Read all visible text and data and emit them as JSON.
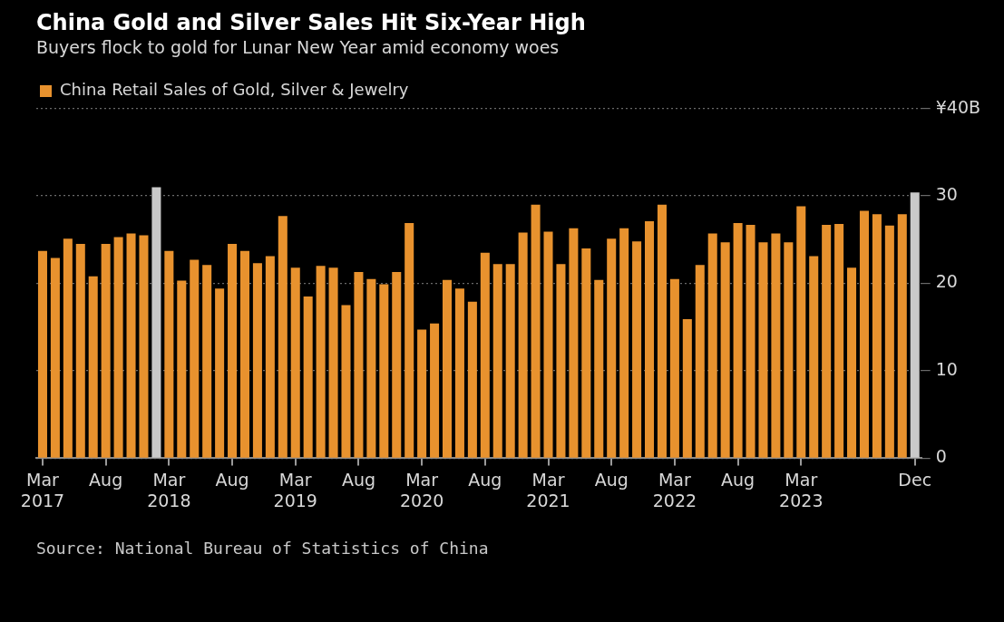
{
  "chart_data": {
    "type": "bar",
    "title": "China Gold and Silver Sales Hit Six-Year High",
    "subtitle": "Buyers flock to gold for Lunar New Year amid economy woes",
    "categories": [
      "Mar 2017",
      null,
      null,
      null,
      null,
      "Aug",
      null,
      null,
      null,
      null,
      "Mar 2018",
      null,
      null,
      null,
      null,
      "Aug",
      null,
      null,
      null,
      null,
      "Mar 2019",
      null,
      null,
      null,
      null,
      "Aug",
      null,
      null,
      null,
      null,
      "Mar 2020",
      null,
      null,
      null,
      null,
      "Aug",
      null,
      null,
      null,
      null,
      "Mar 2021",
      null,
      null,
      null,
      null,
      "Aug",
      null,
      null,
      null,
      null,
      "Mar 2022",
      null,
      null,
      null,
      null,
      "Aug",
      null,
      null,
      null,
      null,
      "Mar 2023",
      null,
      null,
      null,
      null,
      null,
      null,
      null,
      null,
      "Dec"
    ],
    "series": [
      {
        "name": "China Retail Sales of Gold, Silver & Jewelry",
        "color": "#e8922e",
        "colors": [
          "#e8922e",
          "#e8922e",
          "#e8922e",
          "#e8922e",
          "#e8922e",
          "#e8922e",
          "#e8922e",
          "#e8922e",
          "#e8922e",
          "#c9c9c9",
          "#e8922e",
          "#e8922e",
          "#e8922e",
          "#e8922e",
          "#e8922e",
          "#e8922e",
          "#e8922e",
          "#e8922e",
          "#e8922e",
          "#e8922e",
          "#e8922e",
          "#e8922e",
          "#e8922e",
          "#e8922e",
          "#e8922e",
          "#e8922e",
          "#e8922e",
          "#e8922e",
          "#e8922e",
          "#e8922e",
          "#e8922e",
          "#e8922e",
          "#e8922e",
          "#e8922e",
          "#e8922e",
          "#e8922e",
          "#e8922e",
          "#e8922e",
          "#e8922e",
          "#e8922e",
          "#e8922e",
          "#e8922e",
          "#e8922e",
          "#e8922e",
          "#e8922e",
          "#e8922e",
          "#e8922e",
          "#e8922e",
          "#e8922e",
          "#e8922e",
          "#e8922e",
          "#e8922e",
          "#e8922e",
          "#e8922e",
          "#e8922e",
          "#e8922e",
          "#e8922e",
          "#e8922e",
          "#e8922e",
          "#e8922e",
          "#e8922e",
          "#e8922e",
          "#e8922e",
          "#e8922e",
          "#e8922e",
          "#e8922e",
          "#e8922e",
          "#e8922e",
          "#e8922e",
          "#c9c9c9"
        ],
        "values": [
          23.7,
          22.9,
          25.1,
          24.5,
          20.8,
          24.5,
          25.3,
          25.7,
          25.5,
          31.0,
          23.7,
          20.3,
          22.7,
          22.1,
          19.4,
          24.5,
          23.7,
          22.3,
          23.1,
          27.7,
          21.8,
          18.5,
          22.0,
          21.8,
          17.5,
          21.3,
          20.5,
          19.9,
          21.3,
          26.9,
          14.7,
          15.4,
          20.4,
          19.4,
          17.9,
          23.5,
          22.2,
          22.2,
          25.8,
          29.0,
          25.9,
          22.2,
          26.3,
          24.0,
          20.4,
          25.1,
          26.3,
          24.8,
          27.1,
          29.0,
          20.5,
          15.9,
          22.1,
          25.7,
          24.7,
          26.9,
          26.7,
          24.7,
          25.7,
          24.7,
          28.8,
          23.1,
          26.7,
          26.8,
          21.8,
          28.3,
          27.9,
          26.6,
          27.9,
          30.4
        ]
      }
    ],
    "ylim": [
      0,
      40
    ],
    "yticks": [
      0,
      10,
      20,
      30,
      {
        "value": 40,
        "label": "¥40B"
      }
    ],
    "grid": "y",
    "legend": "top left",
    "annotations": [
      "Source: National Bureau of Statistics of China"
    ]
  }
}
